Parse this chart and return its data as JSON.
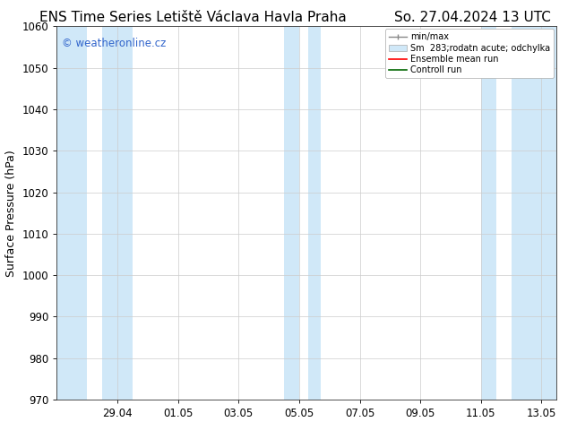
{
  "title_left": "ENS Time Series Letiště Václava Havla Praha",
  "title_right": "So. 27.04.2024 13 UTC",
  "ylabel": "Surface Pressure (hPa)",
  "ylim": [
    970,
    1060
  ],
  "yticks": [
    970,
    980,
    990,
    1000,
    1010,
    1020,
    1030,
    1040,
    1050,
    1060
  ],
  "x_tick_labels": [
    "29.04",
    "01.05",
    "03.05",
    "05.05",
    "07.05",
    "09.05",
    "11.05",
    "13.05"
  ],
  "watermark": "© weatheronline.cz",
  "watermark_color": "#3366cc",
  "bg_color": "#ffffff",
  "plot_bg_color": "#ffffff",
  "shaded_band_color": "#d0e8f8",
  "legend_labels": [
    "min/max",
    "Sm  283;rodatn acute; odchylka",
    "Ensemble mean run",
    "Controll run"
  ],
  "legend_line_colors": [
    "#aaaaaa",
    "#b0c8dc",
    "#ff0000",
    "#008000"
  ],
  "title_fontsize": 11,
  "axis_label_fontsize": 9,
  "tick_fontsize": 8.5,
  "watermark_fontsize": 8.5
}
